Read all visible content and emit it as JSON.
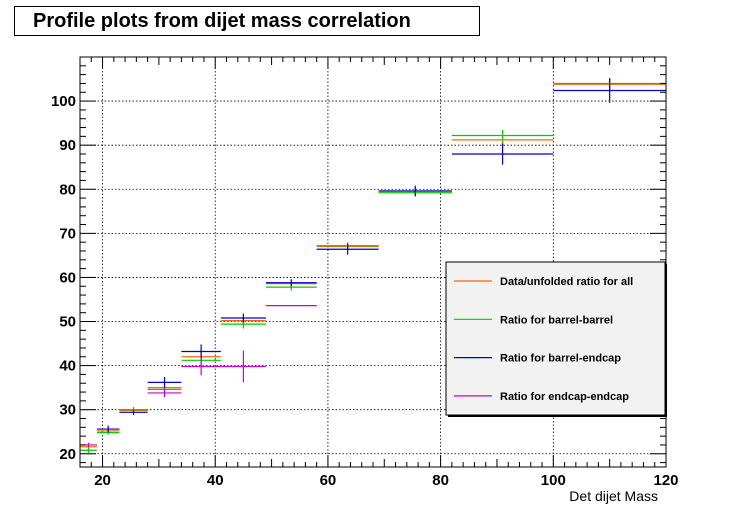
{
  "chart_data": {
    "type": "scatter",
    "title": "Profile plots from dijet mass correlation",
    "xlabel": "Det dijet Mass",
    "ylabel": "",
    "xlim": [
      16,
      120
    ],
    "ylim": [
      17,
      110
    ],
    "x_ticks": [
      "20",
      "40",
      "60",
      "80",
      "100",
      "120"
    ],
    "y_ticks": [
      "20",
      "30",
      "40",
      "50",
      "60",
      "70",
      "80",
      "90",
      "100"
    ],
    "grid": true,
    "legend_placement": "right",
    "series": [
      {
        "name": "Data/unfolded ratio for all",
        "color": "#ff6600",
        "points": [
          {
            "xlo": 16,
            "xhi": 19,
            "y": 21.6,
            "err": 0.8
          },
          {
            "xlo": 19,
            "xhi": 23,
            "y": 25.2,
            "err": 0.5
          },
          {
            "xlo": 23,
            "xhi": 28,
            "y": 29.8,
            "err": 0.6
          },
          {
            "xlo": 28,
            "xhi": 34,
            "y": 35.0,
            "err": 0.8
          },
          {
            "xlo": 34,
            "xhi": 41,
            "y": 42.0,
            "err": 1.2
          },
          {
            "xlo": 41,
            "xhi": 49,
            "y": 50.2,
            "err": 1.0
          },
          {
            "xlo": 49,
            "xhi": 58,
            "y": 58.6,
            "err": 0.8
          },
          {
            "xlo": 58,
            "xhi": 69,
            "y": 67.0,
            "err": 0.8
          },
          {
            "xlo": 69,
            "xhi": 82,
            "y": 79.6,
            "err": 0.8
          },
          {
            "xlo": 82,
            "xhi": 100,
            "y": 91.2,
            "err": 1.2
          },
          {
            "xlo": 100,
            "xhi": 120,
            "y": 103.8,
            "err": 1.2
          }
        ]
      },
      {
        "name": "Ratio for barrel-barrel",
        "color": "#00cc00",
        "points": [
          {
            "xlo": 16,
            "xhi": 19,
            "y": 20.8,
            "err": 0.6
          },
          {
            "xlo": 19,
            "xhi": 23,
            "y": 24.8,
            "err": 0.5
          },
          {
            "xlo": 23,
            "xhi": 28,
            "y": 30.0,
            "err": 0.6
          },
          {
            "xlo": 28,
            "xhi": 34,
            "y": 34.6,
            "err": 0.8
          },
          {
            "xlo": 34,
            "xhi": 41,
            "y": 41.2,
            "err": 1.0
          },
          {
            "xlo": 41,
            "xhi": 49,
            "y": 49.4,
            "err": 1.0
          },
          {
            "xlo": 49,
            "xhi": 58,
            "y": 57.8,
            "err": 0.8
          },
          {
            "xlo": 58,
            "xhi": 69,
            "y": 67.2,
            "err": 0.8
          },
          {
            "xlo": 69,
            "xhi": 82,
            "y": 79.2,
            "err": 0.8
          },
          {
            "xlo": 82,
            "xhi": 100,
            "y": 92.2,
            "err": 1.2
          },
          {
            "xlo": 100,
            "xhi": 120,
            "y": 104.0,
            "err": 1.2
          }
        ]
      },
      {
        "name": "Ratio for barrel-endcap",
        "color": "#0000cc",
        "points": [
          {
            "xlo": 19,
            "xhi": 23,
            "y": 25.6,
            "err": 0.8
          },
          {
            "xlo": 23,
            "xhi": 28,
            "y": 29.4,
            "err": 0.6
          },
          {
            "xlo": 28,
            "xhi": 34,
            "y": 36.2,
            "err": 1.2
          },
          {
            "xlo": 34,
            "xhi": 41,
            "y": 43.2,
            "err": 1.6
          },
          {
            "xlo": 41,
            "xhi": 49,
            "y": 50.8,
            "err": 1.0
          },
          {
            "xlo": 49,
            "xhi": 58,
            "y": 58.8,
            "err": 0.8
          },
          {
            "xlo": 58,
            "xhi": 69,
            "y": 66.4,
            "err": 1.2
          },
          {
            "xlo": 69,
            "xhi": 82,
            "y": 79.6,
            "err": 1.2
          },
          {
            "xlo": 82,
            "xhi": 100,
            "y": 88.0,
            "err": 2.4
          },
          {
            "xlo": 100,
            "xhi": 120,
            "y": 102.4,
            "err": 2.8
          }
        ]
      },
      {
        "name": "Ratio for endcap-endcap",
        "color": "#cc00cc",
        "points": [
          {
            "xlo": 16,
            "xhi": 19,
            "y": 22.0,
            "err": 0.5
          },
          {
            "xlo": 28,
            "xhi": 34,
            "y": 33.8,
            "err": 1.0
          },
          {
            "xlo": 34,
            "xhi": 41,
            "y": 39.8,
            "err": 2.0
          },
          {
            "xlo": 41,
            "xhi": 49,
            "y": 39.8,
            "err": 3.6
          },
          {
            "xlo": 49,
            "xhi": 58,
            "y": 53.6,
            "err": 0
          }
        ]
      }
    ]
  }
}
